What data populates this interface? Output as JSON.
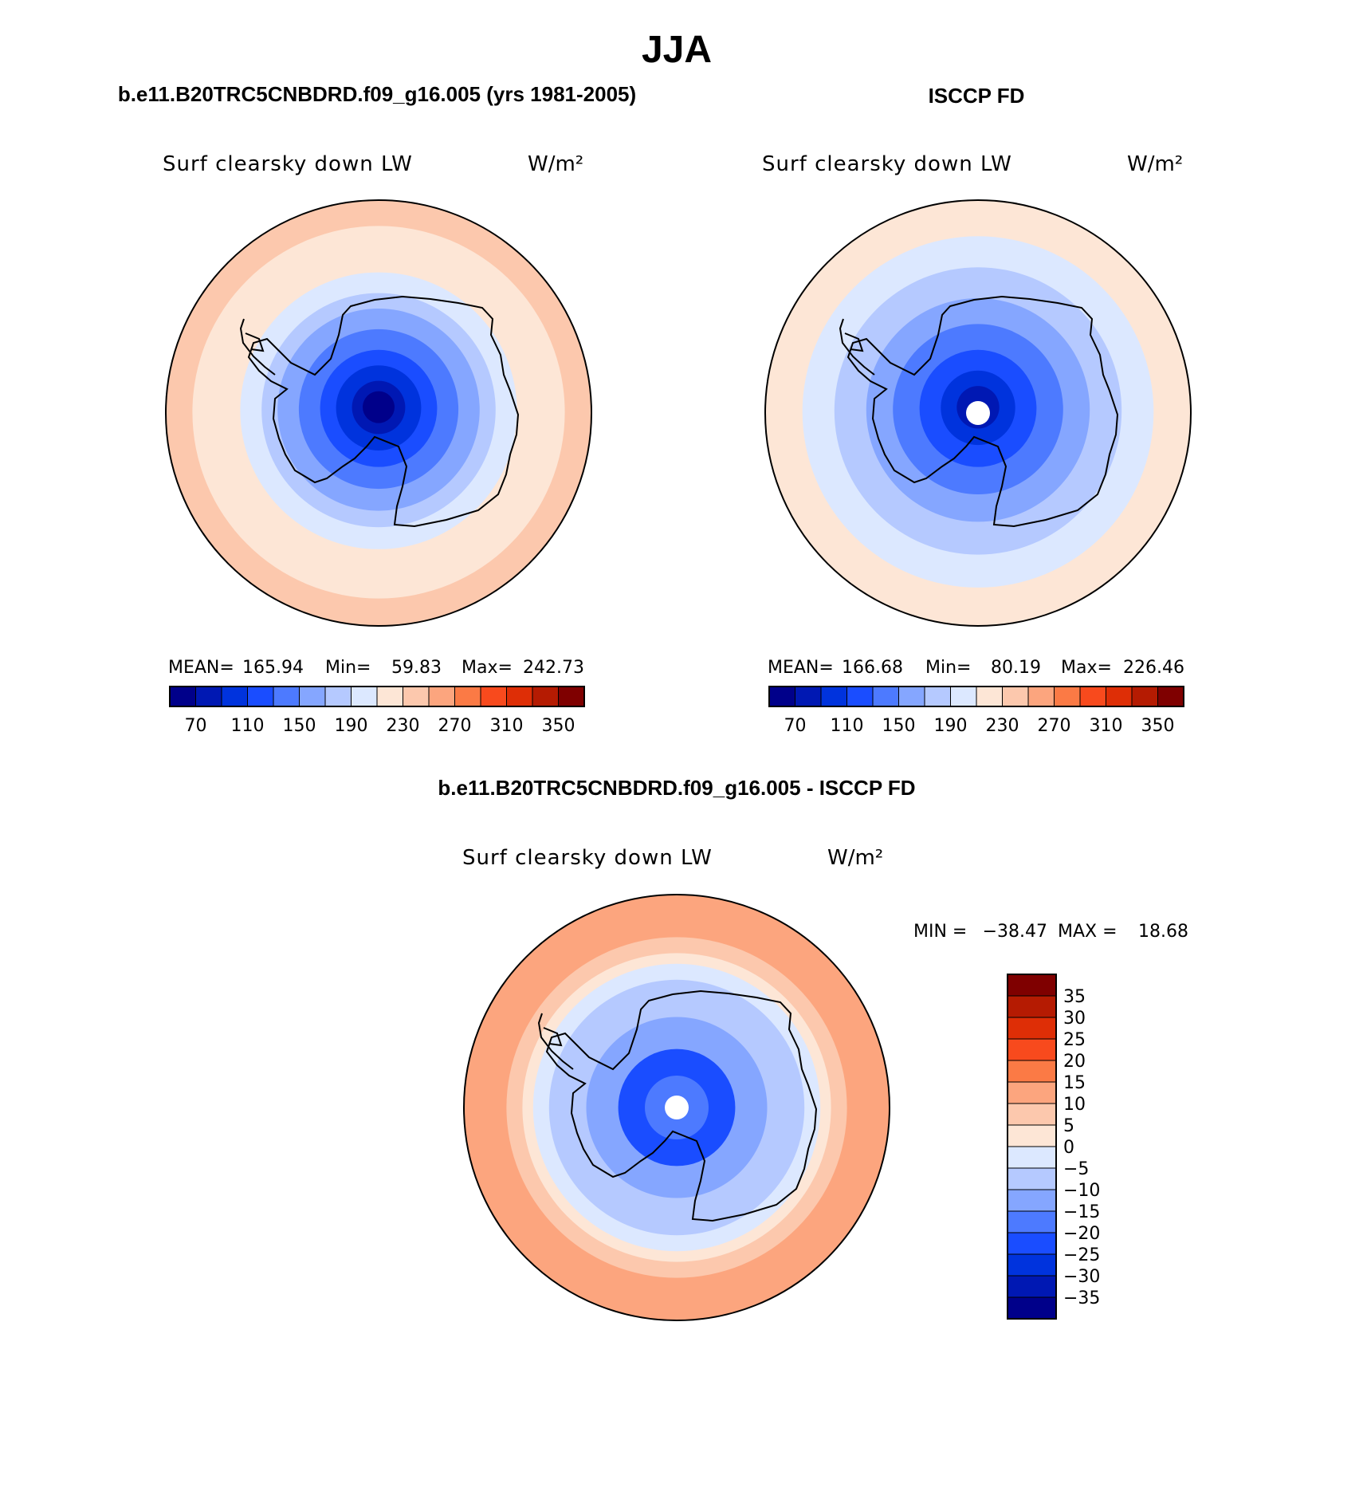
{
  "figure": {
    "title": "JJA",
    "panel1_title": "b.e11.B20TRC5CNBDRD.f09_g16.005 (yrs 1981-2005)",
    "panel2_title": "ISCCP FD",
    "panel3_title": "b.e11.B20TRC5CNBDRD.f09_g16.005 - ISCCP FD"
  },
  "chart_data": [
    {
      "type": "heatmap",
      "projection": "south-polar-stereographic",
      "variable": "Surf clearsky down LW",
      "units": "W/m²",
      "stats": {
        "mean_label": "MEAN=",
        "mean": "165.94",
        "min_label": "Min=",
        "min": "59.83",
        "max_label": "Max=",
        "max": "242.73"
      },
      "colorbar": {
        "orientation": "horizontal",
        "levels": [
          70,
          90,
          110,
          130,
          150,
          170,
          190,
          210,
          230,
          250,
          270,
          290,
          310,
          330,
          350
        ],
        "tick_labels": [
          "70",
          "110",
          "150",
          "190",
          "230",
          "270",
          "310",
          "350"
        ],
        "colors": [
          "#00008a",
          "#0018b3",
          "#0033dd",
          "#1a4dff",
          "#4d7aff",
          "#85a6ff",
          "#b5c9ff",
          "#dce8ff",
          "#fde6d6",
          "#fcc8ad",
          "#fca57e",
          "#fb7a45",
          "#f84a1d",
          "#de2e06",
          "#b51b02",
          "#7f0000"
        ]
      },
      "field": {
        "rings": [
          {
            "radius_deg": 40,
            "value": 245
          },
          {
            "radius_deg": 35,
            "value": 225
          },
          {
            "radius_deg": 30,
            "value": 215
          },
          {
            "radius_deg": 26,
            "value": 195
          },
          {
            "radius_deg": 22,
            "value": 180
          },
          {
            "radius_deg": 19,
            "value": 160
          },
          {
            "radius_deg": 15,
            "value": 135
          },
          {
            "radius_deg": 11,
            "value": 115
          },
          {
            "radius_deg": 8,
            "value": 95
          },
          {
            "radius_deg": 5,
            "value": 75
          },
          {
            "radius_deg": 3,
            "value": 60
          }
        ],
        "pole_hole": false
      }
    },
    {
      "type": "heatmap",
      "projection": "south-polar-stereographic",
      "variable": "Surf clearsky down LW",
      "units": "W/m²",
      "stats": {
        "mean_label": "MEAN=",
        "mean": "166.68",
        "min_label": "Min=",
        "min": "80.19",
        "max_label": "Max=",
        "max": "226.46"
      },
      "colorbar": {
        "orientation": "horizontal",
        "levels": [
          70,
          90,
          110,
          130,
          150,
          170,
          190,
          210,
          230,
          250,
          270,
          290,
          310,
          330,
          350
        ],
        "tick_labels": [
          "70",
          "110",
          "150",
          "190",
          "230",
          "270",
          "310",
          "350"
        ],
        "colors": [
          "#00008a",
          "#0018b3",
          "#0033dd",
          "#1a4dff",
          "#4d7aff",
          "#85a6ff",
          "#b5c9ff",
          "#dce8ff",
          "#fde6d6",
          "#fcc8ad",
          "#fca57e",
          "#fb7a45",
          "#f84a1d",
          "#de2e06",
          "#b51b02",
          "#7f0000"
        ]
      },
      "field": {
        "rings": [
          {
            "radius_deg": 40,
            "value": 225
          },
          {
            "radius_deg": 33,
            "value": 205
          },
          {
            "radius_deg": 27,
            "value": 185
          },
          {
            "radius_deg": 21,
            "value": 165
          },
          {
            "radius_deg": 16,
            "value": 145
          },
          {
            "radius_deg": 11,
            "value": 125
          },
          {
            "radius_deg": 7,
            "value": 100
          },
          {
            "radius_deg": 4,
            "value": 85
          }
        ],
        "pole_hole": true
      }
    },
    {
      "type": "heatmap",
      "projection": "south-polar-stereographic",
      "variable": "Surf clearsky down LW",
      "units": "W/m²",
      "stats": {
        "min_label": "MIN =",
        "min": "−38.47",
        "max_label": "MAX =",
        "max": "18.68"
      },
      "colorbar": {
        "orientation": "vertical",
        "levels": [
          -35,
          -30,
          -25,
          -20,
          -15,
          -10,
          -5,
          0,
          5,
          10,
          15,
          20,
          25,
          30,
          35
        ],
        "tick_labels": [
          "−35",
          "−30",
          "−25",
          "−20",
          "−15",
          "−10",
          "−5",
          "0",
          "5",
          "10",
          "15",
          "20",
          "25",
          "30",
          "35"
        ],
        "colors": [
          "#00008a",
          "#0018b3",
          "#0033dd",
          "#1a4dff",
          "#4d7aff",
          "#85a6ff",
          "#b5c9ff",
          "#dce8ff",
          "#fde6d6",
          "#fcc8ad",
          "#fca57e",
          "#fb7a45",
          "#f84a1d",
          "#de2e06",
          "#b51b02",
          "#7f0000"
        ]
      },
      "field": {
        "rings": [
          {
            "radius_deg": 40,
            "value": 12
          },
          {
            "radius_deg": 32,
            "value": 7
          },
          {
            "radius_deg": 29,
            "value": 3
          },
          {
            "radius_deg": 27,
            "value": -3
          },
          {
            "radius_deg": 24,
            "value": -8
          },
          {
            "radius_deg": 17,
            "value": -13
          },
          {
            "radius_deg": 11,
            "value": -21
          },
          {
            "radius_deg": 6,
            "value": -17
          }
        ],
        "pole_hole": true
      }
    }
  ]
}
